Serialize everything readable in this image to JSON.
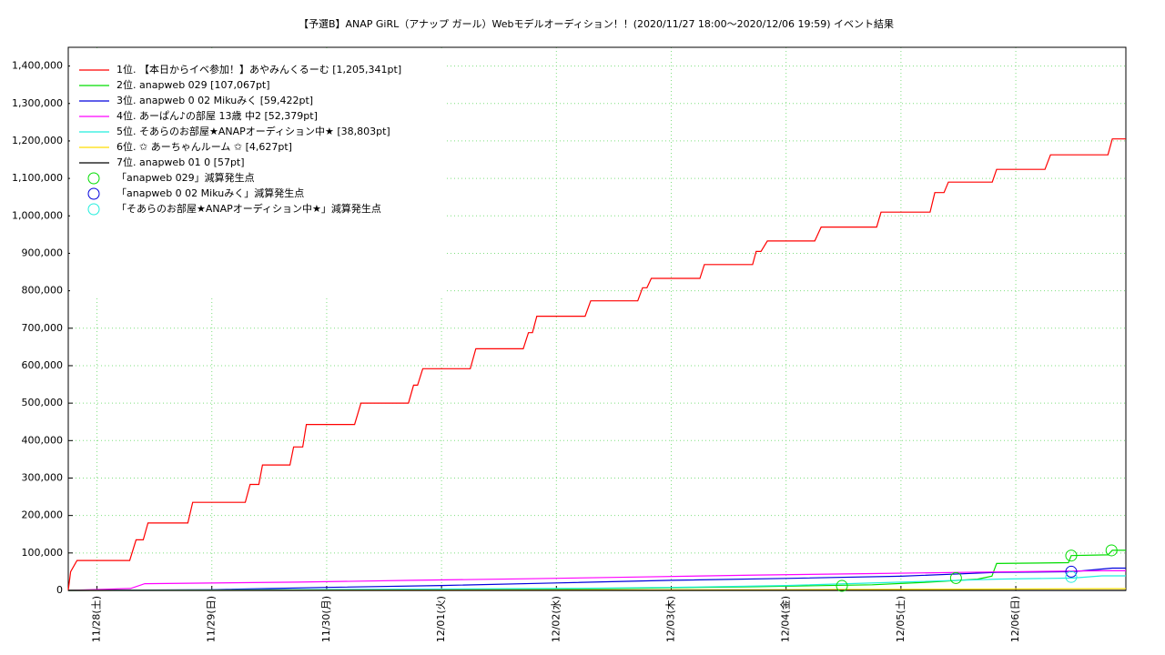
{
  "chart_data": {
    "type": "line",
    "title": "【予選B】ANAP GiRL（アナップ ガール）Webモデルオーディション！！(2020/11/27 18:00～2020/12/06 19:59)          イベント結果",
    "xlim": [
      "2020/11/27 18:00",
      "2020/12/06 23:00"
    ],
    "xticks": [
      {
        "value": "2020/11/28 00:00",
        "label": "11/28(土)"
      },
      {
        "value": "2020/11/29 00:00",
        "label": "11/29(日)"
      },
      {
        "value": "2020/11/30 00:00",
        "label": "11/30(月)"
      },
      {
        "value": "2020/12/01 00:00",
        "label": "12/01(火)"
      },
      {
        "value": "2020/12/02 00:00",
        "label": "12/02(水)"
      },
      {
        "value": "2020/12/03 00:00",
        "label": "12/03(木)"
      },
      {
        "value": "2020/12/04 00:00",
        "label": "12/04(金)"
      },
      {
        "value": "2020/12/05 00:00",
        "label": "12/05(土)"
      },
      {
        "value": "2020/12/06 00:00",
        "label": "12/06(日)"
      }
    ],
    "ylim": [
      0,
      1450000
    ],
    "yticks": [
      0,
      {
        "value": 100000,
        "label": "100,000"
      },
      {
        "value": 200000,
        "label": "200,000"
      },
      {
        "value": 300000,
        "label": "300,000"
      },
      {
        "value": 400000,
        "label": "400,000"
      },
      {
        "value": 500000,
        "label": "500,000"
      },
      {
        "value": 600000,
        "label": "600,000"
      },
      {
        "value": 700000,
        "label": "700,000"
      },
      {
        "value": 800000,
        "label": "800,000"
      },
      {
        "value": 900000,
        "label": "900,000"
      },
      {
        "value": 1000000,
        "label": "1,000,000"
      },
      {
        "value": 1100000,
        "label": "1,100,000"
      },
      {
        "value": 1200000,
        "label": "1,200,000"
      },
      {
        "value": 1300000,
        "label": "1,300,000"
      },
      {
        "value": 1400000,
        "label": "1,400,000"
      }
    ],
    "grid": true,
    "legend": "top-left",
    "series": [
      {
        "name": "1位. 【本日からイベ参加！】あやみんくるーむ  [1,205,341pt]",
        "color": "#ff0000",
        "style": "line",
        "x": [
          "2020/11/27 18:00",
          "2020/11/27 18:30",
          "2020/11/27 19:50",
          "2020/11/28 06:50",
          "2020/11/28 08:10",
          "2020/11/28 09:40",
          "2020/11/28 10:40",
          "2020/11/28 19:00",
          "2020/11/28 20:00",
          "2020/11/29 07:00",
          "2020/11/29 08:00",
          "2020/11/29 09:50",
          "2020/11/29 10:35",
          "2020/11/29 16:20",
          "2020/11/29 17:05",
          "2020/11/29 19:00",
          "2020/11/29 19:45",
          "2020/11/30 05:50",
          "2020/11/30 07:10",
          "2020/11/30 17:05",
          "2020/11/30 18:10",
          "2020/11/30 19:00",
          "2020/11/30 20:05",
          "2020/12/01 06:00",
          "2020/12/01 07:10",
          "2020/12/01 17:05",
          "2020/12/01 18:10",
          "2020/12/01 19:00",
          "2020/12/01 19:55",
          "2020/12/02 06:00",
          "2020/12/02 07:10",
          "2020/12/02 17:00",
          "2020/12/02 18:00",
          "2020/12/02 18:55",
          "2020/12/02 19:50",
          "2020/12/03 06:00",
          "2020/12/03 06:55",
          "2020/12/03 17:00",
          "2020/12/03 17:45",
          "2020/12/03 18:45",
          "2020/12/03 20:05",
          "2020/12/04 06:00",
          "2020/12/04 07:20",
          "2020/12/04 18:55",
          "2020/12/04 19:50",
          "2020/12/05 06:05",
          "2020/12/05 07:05",
          "2020/12/05 09:00",
          "2020/12/05 09:55",
          "2020/12/05 19:05",
          "2020/12/05 20:00",
          "2020/12/06 06:05",
          "2020/12/06 07:15",
          "2020/12/06 19:15",
          "2020/12/06 20:10",
          "2020/12/06 23:00"
        ],
        "values": [
          0,
          50000,
          80000,
          80000,
          135000,
          135000,
          180000,
          180000,
          235000,
          235000,
          283000,
          283000,
          335000,
          335000,
          383000,
          383000,
          443000,
          443000,
          500000,
          500000,
          548000,
          548000,
          592000,
          592000,
          645000,
          645000,
          688000,
          688000,
          732000,
          732000,
          773000,
          773000,
          808000,
          808000,
          833000,
          833000,
          870000,
          870000,
          905000,
          905000,
          933000,
          933000,
          970000,
          970000,
          1010000,
          1010000,
          1062000,
          1062000,
          1090000,
          1090000,
          1124000,
          1124000,
          1163000,
          1163000,
          1205341,
          1205341
        ]
      },
      {
        "name": "2位. anapweb 029 [107,067pt]",
        "color": "#00dd00",
        "style": "line",
        "x": [
          "2020/11/27 18:00",
          "2020/12/01 18:00",
          "2020/12/02 18:00",
          "2020/12/03 18:00",
          "2020/12/04 18:00",
          "2020/12/05 06:00",
          "2020/12/05 16:00",
          "2020/12/05 19:00",
          "2020/12/05 20:00",
          "2020/12/06 11:00",
          "2020/12/06 11:35",
          "2020/12/06 19:15",
          "2020/12/06 20:10",
          "2020/12/06 23:00"
        ],
        "values": [
          0,
          3000,
          6000,
          10000,
          15000,
          22000,
          30000,
          38000,
          72000,
          74000,
          93000,
          95000,
          107067,
          107067
        ]
      },
      {
        "name": "3位. anapweb 0 02  Mikuみく [59,422pt]",
        "color": "#0000dd",
        "style": "line",
        "x": [
          "2020/11/27 18:00",
          "2020/11/29 00:00",
          "2020/11/30 00:00",
          "2020/12/01 00:00",
          "2020/12/02 00:00",
          "2020/12/03 00:00",
          "2020/12/04 00:00",
          "2020/12/05 00:00",
          "2020/12/05 20:00",
          "2020/12/06 12:00",
          "2020/12/06 18:00",
          "2020/12/06 20:10",
          "2020/12/06 23:00"
        ],
        "values": [
          0,
          2000,
          8000,
          13000,
          20000,
          27000,
          32000,
          38000,
          48000,
          50000,
          57000,
          59422,
          59422
        ]
      },
      {
        "name": "4位. あーぱん♪の部屋 13歳 中2 [52,379pt]",
        "color": "#ff00ff",
        "style": "line",
        "x": [
          "2020/11/27 18:00",
          "2020/11/28 07:00",
          "2020/11/28 10:00",
          "2020/11/29 18:00",
          "2020/11/30 18:00",
          "2020/12/01 18:00",
          "2020/12/02 18:00",
          "2020/12/03 18:00",
          "2020/12/04 18:00",
          "2020/12/05 18:00",
          "2020/12/06 18:00",
          "2020/12/06 23:00"
        ],
        "values": [
          0,
          5000,
          18000,
          22000,
          27000,
          31000,
          36000,
          41000,
          45000,
          49000,
          52379,
          52379
        ]
      },
      {
        "name": "5位. そあらのお部屋★ANAPオーディション中★ [38,803pt]",
        "color": "#22eedd",
        "style": "line",
        "x": [
          "2020/11/27 18:00",
          "2020/12/02 00:00",
          "2020/12/03 00:00",
          "2020/12/04 00:00",
          "2020/12/05 00:00",
          "2020/12/05 20:00",
          "2020/12/06 12:00",
          "2020/12/06 18:00",
          "2020/12/06 23:00"
        ],
        "values": [
          0,
          5000,
          8000,
          13000,
          22000,
          30000,
          33000,
          38803,
          38803
        ]
      },
      {
        "name": "6位. ✩ あーちゃんルーム ✩ [4,627pt]",
        "color": "#ffdd00",
        "style": "line",
        "x": [
          "2020/11/27 18:00",
          "2020/12/04 00:00",
          "2020/12/06 20:10",
          "2020/12/06 23:00"
        ],
        "values": [
          0,
          2000,
          4627,
          4627
        ]
      },
      {
        "name": "7位. anapweb 01 0 [57pt]",
        "color": "#000000",
        "style": "line",
        "x": [
          "2020/11/27 18:00",
          "2020/12/06 23:00"
        ],
        "values": [
          0,
          57
        ]
      },
      {
        "name": "「anapweb 029」減算発生点",
        "color": "#00dd00",
        "style": "points",
        "x": [
          "2020/12/04 11:40",
          "2020/12/05 11:30",
          "2020/12/06 11:35",
          "2020/12/06 20:00"
        ],
        "values": [
          12000,
          33000,
          93000,
          107000
        ]
      },
      {
        "name": "「anapweb 0 02  Mikuみく」減算発生点",
        "color": "#0000dd",
        "style": "points",
        "x": [
          "2020/12/06 11:35"
        ],
        "values": [
          50000
        ]
      },
      {
        "name": "「そあらのお部屋★ANAPオーディション中★」減算発生点",
        "color": "#22eedd",
        "style": "points",
        "x": [
          "2020/12/06 11:35"
        ],
        "values": [
          36000
        ]
      }
    ]
  }
}
